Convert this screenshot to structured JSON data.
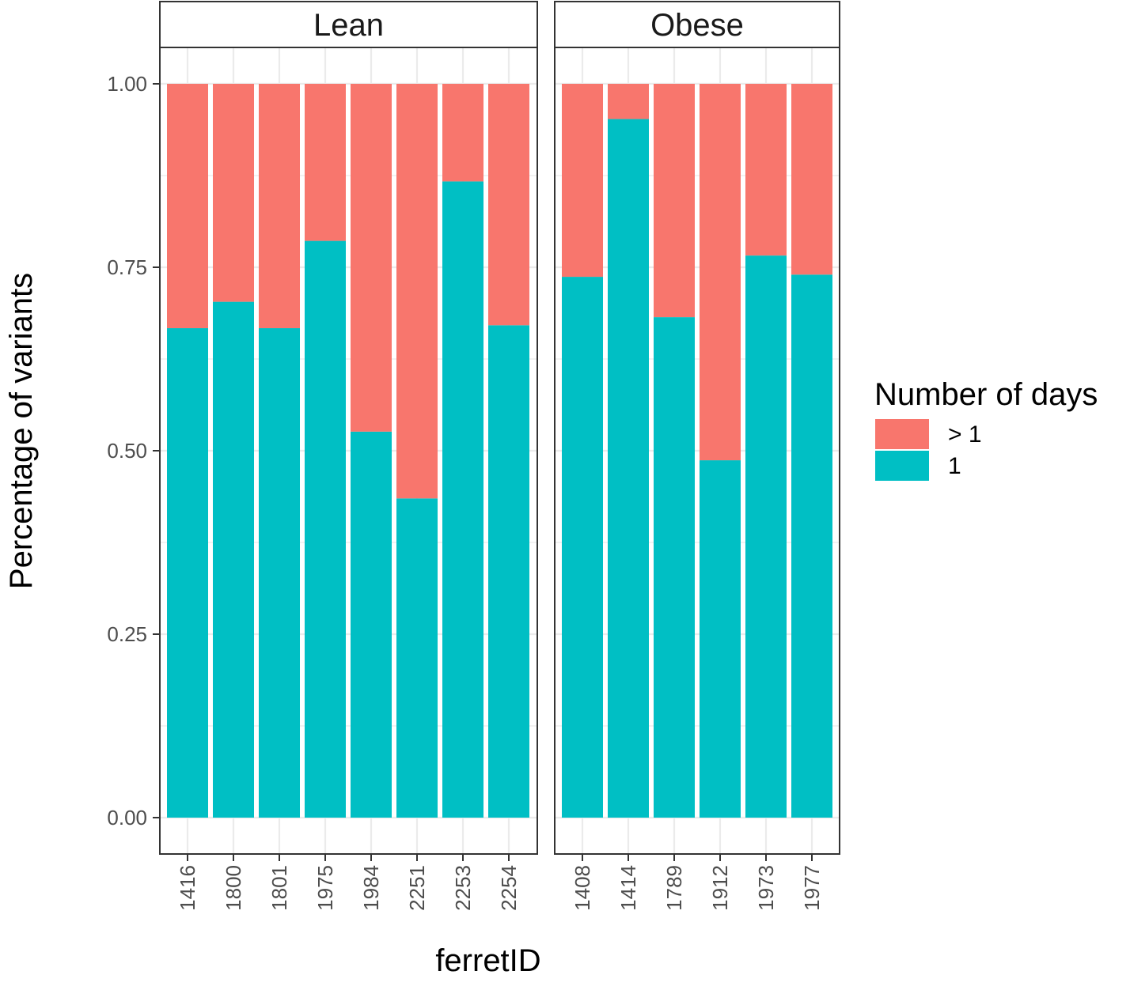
{
  "chart_data": {
    "type": "bar",
    "stacked": true,
    "xlabel": "ferretID",
    "ylabel": "Percentage of variants",
    "ylim": [
      0,
      1.05
    ],
    "yticks": [
      "0.00",
      "0.25",
      "0.50",
      "0.75",
      "1.00"
    ],
    "grid": true,
    "legend": {
      "title": "Number of days",
      "position": "right",
      "items": [
        {
          "label": "> 1",
          "color": "#F8766D"
        },
        {
          "label": "1",
          "color": "#00BFC4"
        }
      ]
    },
    "panels": [
      {
        "facet": "Lean",
        "categories": [
          "1416",
          "1800",
          "1801",
          "1975",
          "1984",
          "2251",
          "2253",
          "2254"
        ],
        "series": [
          {
            "name": "1",
            "color": "#00BFC4",
            "values": [
              0.667,
              0.703,
              0.667,
              0.786,
              0.526,
              0.435,
              0.867,
              0.671
            ]
          },
          {
            "name": "> 1",
            "color": "#F8766D",
            "values": [
              0.333,
              0.297,
              0.333,
              0.214,
              0.474,
              0.565,
              0.133,
              0.329
            ]
          }
        ]
      },
      {
        "facet": "Obese",
        "categories": [
          "1408",
          "1414",
          "1789",
          "1912",
          "1973",
          "1977"
        ],
        "series": [
          {
            "name": "1",
            "color": "#00BFC4",
            "values": [
              0.737,
              0.952,
              0.682,
              0.487,
              0.766,
              0.74
            ]
          },
          {
            "name": "> 1",
            "color": "#F8766D",
            "values": [
              0.263,
              0.048,
              0.318,
              0.513,
              0.234,
              0.26
            ]
          }
        ]
      }
    ]
  }
}
